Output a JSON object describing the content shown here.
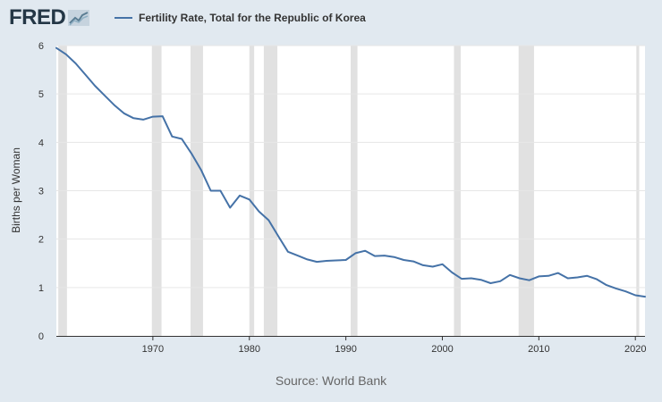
{
  "header": {
    "logo_text": "FRED",
    "logo_icon": "trend-line-icon"
  },
  "footer": {
    "source": "Source: World Bank"
  },
  "chart_data": {
    "type": "line",
    "title": "",
    "legend": {
      "position": "top-left",
      "entries": [
        "Fertility Rate, Total for the Republic of Korea"
      ]
    },
    "ylabel": "Births per Woman",
    "xlabel": "",
    "xlim": [
      1960,
      2021
    ],
    "ylim": [
      0,
      6
    ],
    "x_ticks": [
      1970,
      1980,
      1990,
      2000,
      2010,
      2020
    ],
    "y_ticks": [
      0,
      1,
      2,
      3,
      4,
      5,
      6
    ],
    "grid": {
      "horizontal": true,
      "vertical": false
    },
    "recession_shading_color": "#e1e1e1",
    "recessions": [
      [
        1960.2,
        1961.1
      ],
      [
        1969.9,
        1970.9
      ],
      [
        1973.9,
        1975.2
      ],
      [
        1980.0,
        1980.5
      ],
      [
        1981.5,
        1982.9
      ],
      [
        1990.5,
        1991.2
      ],
      [
        2001.2,
        2001.9
      ],
      [
        2007.9,
        2009.5
      ],
      [
        2020.1,
        2020.4
      ]
    ],
    "series": [
      {
        "name": "Fertility Rate, Total for the Republic of Korea",
        "color": "#4572a7",
        "x": [
          1960,
          1961,
          1962,
          1963,
          1964,
          1965,
          1966,
          1967,
          1968,
          1969,
          1970,
          1971,
          1972,
          1973,
          1974,
          1975,
          1976,
          1977,
          1978,
          1979,
          1980,
          1981,
          1982,
          1983,
          1984,
          1985,
          1986,
          1987,
          1988,
          1989,
          1990,
          1991,
          1992,
          1993,
          1994,
          1995,
          1996,
          1997,
          1998,
          1999,
          2000,
          2001,
          2002,
          2003,
          2004,
          2005,
          2006,
          2007,
          2008,
          2009,
          2010,
          2011,
          2012,
          2013,
          2014,
          2015,
          2016,
          2017,
          2018,
          2019,
          2020,
          2021
        ],
        "values": [
          5.95,
          5.82,
          5.63,
          5.4,
          5.17,
          4.97,
          4.77,
          4.6,
          4.5,
          4.47,
          4.53,
          4.54,
          4.12,
          4.07,
          3.77,
          3.43,
          3.0,
          3.0,
          2.65,
          2.9,
          2.82,
          2.57,
          2.39,
          2.06,
          1.74,
          1.66,
          1.58,
          1.53,
          1.55,
          1.56,
          1.57,
          1.71,
          1.76,
          1.65,
          1.66,
          1.63,
          1.57,
          1.54,
          1.46,
          1.43,
          1.48,
          1.31,
          1.18,
          1.19,
          1.16,
          1.09,
          1.13,
          1.26,
          1.19,
          1.15,
          1.23,
          1.24,
          1.3,
          1.19,
          1.21,
          1.24,
          1.17,
          1.05,
          0.98,
          0.92,
          0.84,
          0.81
        ]
      }
    ]
  }
}
